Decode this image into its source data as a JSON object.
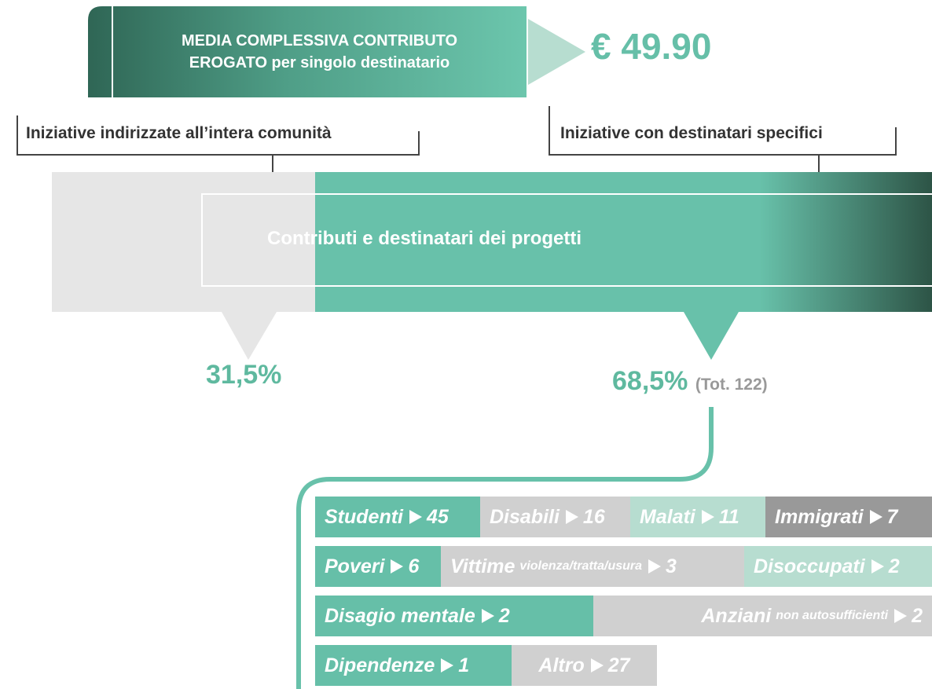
{
  "header": {
    "lines": [
      "MEDIA COMPLESSIVA CONTRIBUTO",
      "EROGATO per singolo destinatario"
    ],
    "value": "€ 49.90"
  },
  "split": {
    "title": "Contributi e destinatari dei progetti",
    "left": {
      "label": "Iniziative indirizzate all’intera comunità",
      "share": "31,5%"
    },
    "right": {
      "label": "Iniziative con destinatari specifici",
      "share": "68,5%",
      "total": "(Tot. 122)"
    }
  },
  "recipients": [
    [
      {
        "name": "Studenti",
        "count": 45
      },
      {
        "name": "Disabili",
        "count": 16
      },
      {
        "name": "Malati",
        "count": 11
      },
      {
        "name": "Immigrati",
        "count": 7
      }
    ],
    [
      {
        "name": "Poveri",
        "count": 6
      },
      {
        "name": "Vittime",
        "qualifier": "violenza/tratta/usura",
        "count": 3
      },
      {
        "name": "Disoccupati",
        "count": 2
      }
    ],
    [
      {
        "name": "Disagio mentale",
        "count": 2
      },
      {
        "name": "Anziani",
        "qualifier": "non autosufficienti",
        "count": 2
      }
    ],
    [
      {
        "name": "Dipendenze",
        "count": 1
      },
      {
        "name": "Altro",
        "count": 27
      }
    ]
  ]
}
